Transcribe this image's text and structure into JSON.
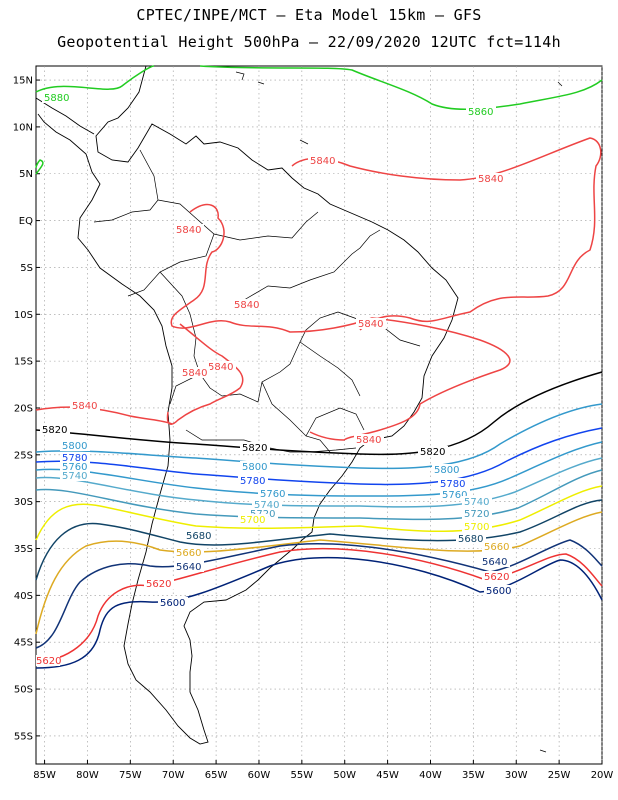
{
  "header": {
    "line1": "CPTEC/INPE/MCT –  Eta Model 15km – GFS",
    "line2": "Geopotential Height 500hPa – 22/09/2020 12UTC fct=114h"
  },
  "axes": {
    "lat_labels": [
      "15N",
      "10N",
      "5N",
      "EQ",
      "5S",
      "10S",
      "15S",
      "20S",
      "25S",
      "30S",
      "35S",
      "40S",
      "45S",
      "50S",
      "55S"
    ],
    "lat_values": [
      15,
      10,
      5,
      0,
      -5,
      -10,
      -15,
      -20,
      -25,
      -30,
      -35,
      -40,
      -45,
      -50,
      -55
    ],
    "lon_labels": [
      "85W",
      "80W",
      "75W",
      "70W",
      "65W",
      "60W",
      "55W",
      "50W",
      "45W",
      "40W",
      "35W",
      "30W",
      "25W",
      "20W"
    ],
    "lon_values": [
      -85,
      -80,
      -75,
      -70,
      -65,
      -60,
      -55,
      -50,
      -45,
      -40,
      -35,
      -30,
      -25,
      -20
    ],
    "lon_range": [
      -86,
      -20
    ],
    "lat_range": [
      -58,
      16.5
    ]
  },
  "colors": {
    "c5880": "#22cc22",
    "c5860": "#22cc22",
    "c5840": "#ee4444",
    "c5820": "#000000",
    "c5800": "#3399cc",
    "c5780": "#1144ee",
    "c5760": "#3399cc",
    "c5740": "#55aacc",
    "c5720": "#4499bb",
    "c5700": "#eeee00",
    "c5680": "#114466",
    "c5660": "#ddaa22",
    "c5640": "#113377",
    "c5620": "#ee3333",
    "c5600": "#002277",
    "grid": "#999999",
    "coast": "#000000"
  },
  "contour_labels": {
    "h5880": "5880",
    "h5860": "5860",
    "h5840": "5840",
    "h5820": "5820",
    "h5800": "5800",
    "h5780": "5780",
    "h5760": "5760",
    "h5740": "5740",
    "h5720": "5720",
    "h5700": "5700",
    "h5680": "5680",
    "h5660": "5660",
    "h5640": "5640",
    "h5620": "5620",
    "h5600": "5600",
    "h5860_right": "5860"
  }
}
